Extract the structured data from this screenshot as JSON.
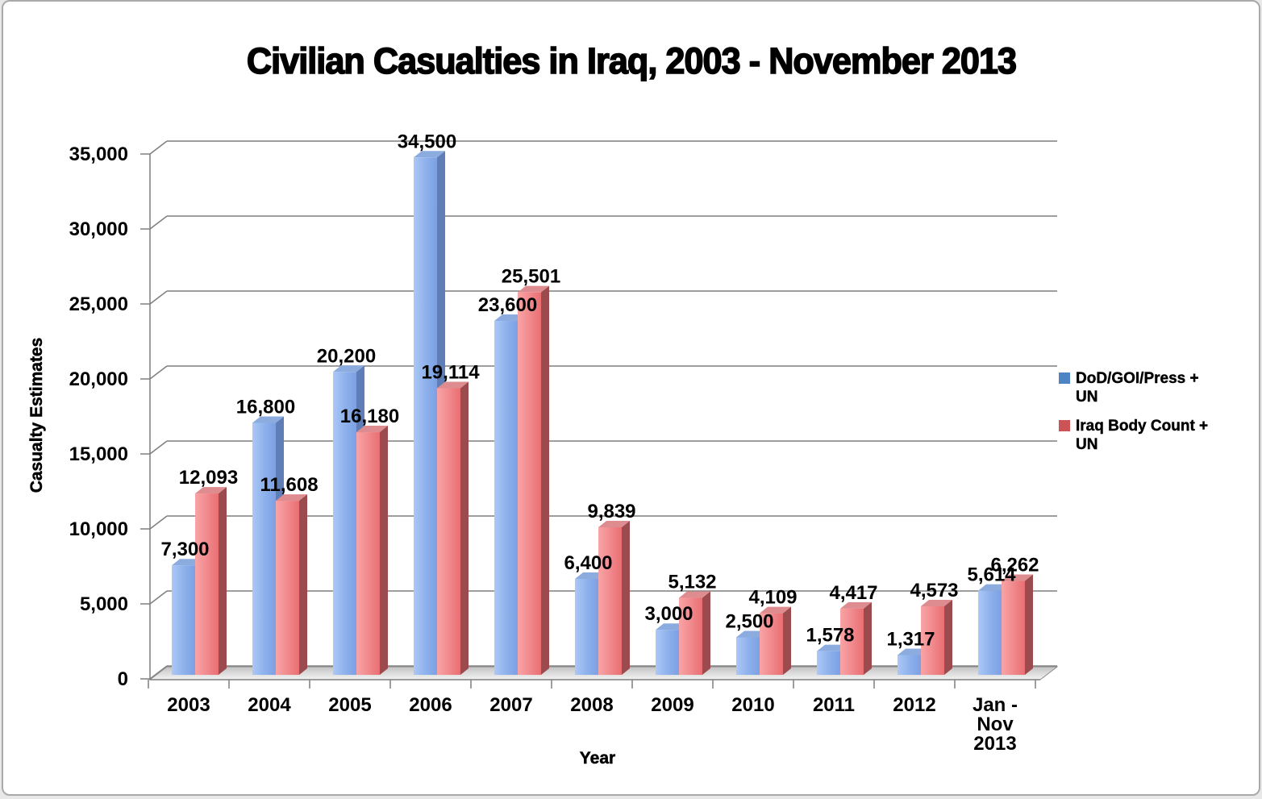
{
  "window": {
    "background": "#ffffff",
    "border_color": "#a9a9a9"
  },
  "title": "Civilian Casualties in Iraq, 2003 - November 2013",
  "chart_data": {
    "type": "bar",
    "effect": "3d",
    "title": "Civilian Casualties in Iraq, 2003 - November 2013",
    "xlabel": "Year",
    "ylabel": "Casualty Estimates",
    "ylim": [
      0,
      35000
    ],
    "ytick_step": 5000,
    "ytick_labels": [
      "0",
      "5,000",
      "10,000",
      "15,000",
      "20,000",
      "25,000",
      "30,000",
      "35,000"
    ],
    "grid": true,
    "legend_position": "right",
    "categories": [
      "2003",
      "2004",
      "2005",
      "2006",
      "2007",
      "2008",
      "2009",
      "2010",
      "2011",
      "2012",
      "Jan -\nNov\n2013"
    ],
    "series": [
      {
        "name": "DoD/GOI/Press + UN",
        "legend_lines": [
          "DoD/GOI/Press +",
          "UN"
        ],
        "legend_color": "#4E84C4",
        "face_front": [
          "#ABC8F6",
          "#8FB2EC",
          "#7BA0E4"
        ],
        "face_top": "#8CACE0",
        "face_side": "#5F7EB8",
        "values": [
          7300,
          16800,
          20200,
          34500,
          23600,
          6400,
          3000,
          2500,
          1578,
          1317,
          5614
        ]
      },
      {
        "name": "Iraq Body Count + UN",
        "legend_lines": [
          "Iraq Body Count +",
          "UN"
        ],
        "legend_color": "#CE5357",
        "face_front": [
          "#F8A4A7",
          "#F18A8D",
          "#E96E72"
        ],
        "face_top": "#DE8C8F",
        "face_side": "#9B4B4E",
        "values": [
          12093,
          11608,
          16180,
          19114,
          25501,
          9839,
          5132,
          4109,
          4417,
          4573,
          6262
        ]
      }
    ],
    "style": {
      "gridline_color": "#7f7f7f",
      "axis_color": "#7f7f7f",
      "floor_colors": [
        "#c2c2c2",
        "#dcdcdc",
        "#f4f4f4"
      ],
      "floor_border": "#8c8c8c",
      "text_color": "#000000"
    }
  }
}
